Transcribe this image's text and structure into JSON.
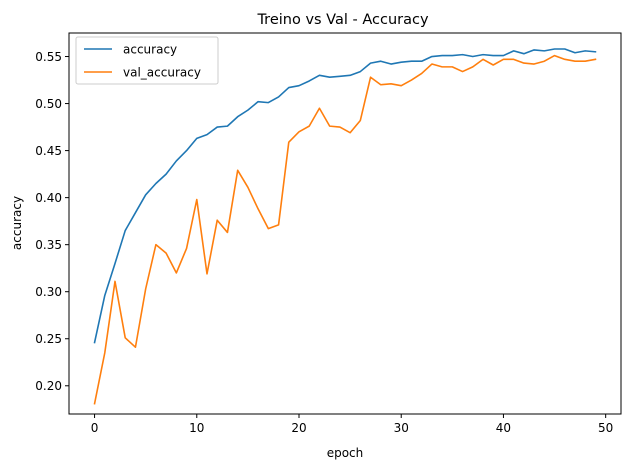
{
  "chart_data": {
    "type": "line",
    "title": "Treino vs Val - Accuracy",
    "xlabel": "epoch",
    "ylabel": "accuracy",
    "xlim": [
      -2.5,
      51.5
    ],
    "ylim": [
      0.17,
      0.575
    ],
    "xticks": [
      0,
      10,
      20,
      30,
      40,
      50
    ],
    "yticks": [
      0.2,
      0.25,
      0.3,
      0.35,
      0.4,
      0.45,
      0.5,
      0.55
    ],
    "ytick_labels": [
      "0.20",
      "0.25",
      "0.30",
      "0.35",
      "0.40",
      "0.45",
      "0.50",
      "0.55"
    ],
    "grid": false,
    "legend_position": "upper-left",
    "x": [
      0,
      1,
      2,
      3,
      4,
      5,
      6,
      7,
      8,
      9,
      10,
      11,
      12,
      13,
      14,
      15,
      16,
      17,
      18,
      19,
      20,
      21,
      22,
      23,
      24,
      25,
      26,
      27,
      28,
      29,
      30,
      31,
      32,
      33,
      34,
      35,
      36,
      37,
      38,
      39,
      40,
      41,
      42,
      43,
      44,
      45,
      46,
      47,
      48,
      49
    ],
    "series": [
      {
        "name": "accuracy",
        "color": "#1f77b4",
        "values": [
          0.246,
          0.296,
          0.33,
          0.365,
          0.384,
          0.403,
          0.415,
          0.425,
          0.439,
          0.45,
          0.463,
          0.467,
          0.475,
          0.476,
          0.486,
          0.493,
          0.502,
          0.501,
          0.507,
          0.517,
          0.519,
          0.524,
          0.53,
          0.528,
          0.529,
          0.53,
          0.534,
          0.543,
          0.545,
          0.542,
          0.544,
          0.545,
          0.545,
          0.55,
          0.551,
          0.551,
          0.552,
          0.55,
          0.552,
          0.551,
          0.551,
          0.556,
          0.553,
          0.557,
          0.556,
          0.558,
          0.558,
          0.554,
          0.556,
          0.555
        ]
      },
      {
        "name": "val_accuracy",
        "color": "#ff7f0e",
        "values": [
          0.181,
          0.235,
          0.311,
          0.251,
          0.241,
          0.303,
          0.35,
          0.341,
          0.32,
          0.346,
          0.398,
          0.319,
          0.376,
          0.363,
          0.429,
          0.411,
          0.388,
          0.367,
          0.371,
          0.459,
          0.47,
          0.476,
          0.495,
          0.476,
          0.475,
          0.469,
          0.482,
          0.528,
          0.52,
          0.521,
          0.519,
          0.525,
          0.532,
          0.542,
          0.539,
          0.539,
          0.534,
          0.539,
          0.547,
          0.541,
          0.547,
          0.547,
          0.543,
          0.542,
          0.545,
          0.551,
          0.547,
          0.545,
          0.545,
          0.547
        ]
      }
    ]
  }
}
